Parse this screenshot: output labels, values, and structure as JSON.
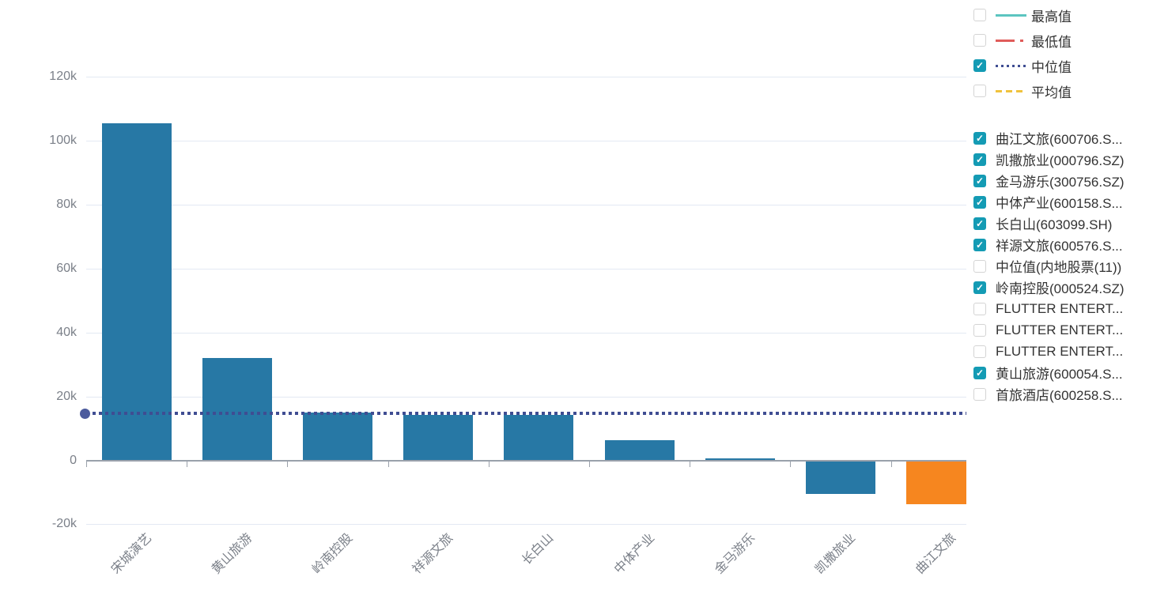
{
  "icons": {
    "checkmark": "✓"
  },
  "colors": {
    "bar": "#2778a5",
    "bar_highlight": "#f6861f",
    "median_line": "#3f4d92",
    "median_dot": "#4c5b9d",
    "grid": "#e3e9f3",
    "axis": "#9aa1ab",
    "axis_text": "#7b8089",
    "legend_text": "#333333",
    "checkbox_on": "#149bb4",
    "checkbox_border": "#d4d4d4"
  },
  "chart_data": {
    "type": "bar",
    "title": "",
    "xlabel": "",
    "ylabel": "",
    "categories": [
      "宋城演艺",
      "黄山旅游",
      "岭南控股",
      "祥源文旅",
      "长白山",
      "中体产业",
      "金马游乐",
      "凯撒旅业",
      "曲江文旅"
    ],
    "values": [
      105400,
      32000,
      15000,
      14300,
      14200,
      6300,
      700,
      -10200,
      -13400
    ],
    "highlight_index": 8,
    "yticks": [
      {
        "label": "-20k",
        "value": -20000
      },
      {
        "label": "0",
        "value": 0
      },
      {
        "label": "20k",
        "value": 20000
      },
      {
        "label": "40k",
        "value": 40000
      },
      {
        "label": "60k",
        "value": 60000
      },
      {
        "label": "80k",
        "value": 80000
      },
      {
        "label": "100k",
        "value": 100000
      },
      {
        "label": "120k",
        "value": 120000
      }
    ],
    "ylim": [
      -20000,
      126000
    ],
    "grid": true,
    "legend_position": "right",
    "median_line": {
      "name": "中位值",
      "value": 14700
    }
  },
  "legend_stats": [
    {
      "label": "最高值",
      "checked": false,
      "line": "solid",
      "color": "#5cc5c0"
    },
    {
      "label": "最低值",
      "checked": false,
      "line": "dashdot",
      "color": "#e05c5a"
    },
    {
      "label": "中位值",
      "checked": true,
      "line": "dotted",
      "color": "#3f4d92"
    },
    {
      "label": "平均值",
      "checked": false,
      "line": "dashed",
      "color": "#f0c23d"
    }
  ],
  "legend_series": [
    {
      "label": "曲江文旅(600706.S...",
      "checked": true
    },
    {
      "label": "凯撒旅业(000796.SZ)",
      "checked": true
    },
    {
      "label": "金马游乐(300756.SZ)",
      "checked": true
    },
    {
      "label": "中体产业(600158.S...",
      "checked": true
    },
    {
      "label": "长白山(603099.SH)",
      "checked": true
    },
    {
      "label": "祥源文旅(600576.S...",
      "checked": true
    },
    {
      "label": "中位值(内地股票(11))",
      "checked": false
    },
    {
      "label": "岭南控股(000524.SZ)",
      "checked": true
    },
    {
      "label": "FLUTTER ENTERT...",
      "checked": false
    },
    {
      "label": "FLUTTER ENTERT...",
      "checked": false
    },
    {
      "label": "FLUTTER ENTERT...",
      "checked": false
    },
    {
      "label": "黄山旅游(600054.S...",
      "checked": true
    },
    {
      "label": "首旅酒店(600258.S...",
      "checked": false
    }
  ]
}
